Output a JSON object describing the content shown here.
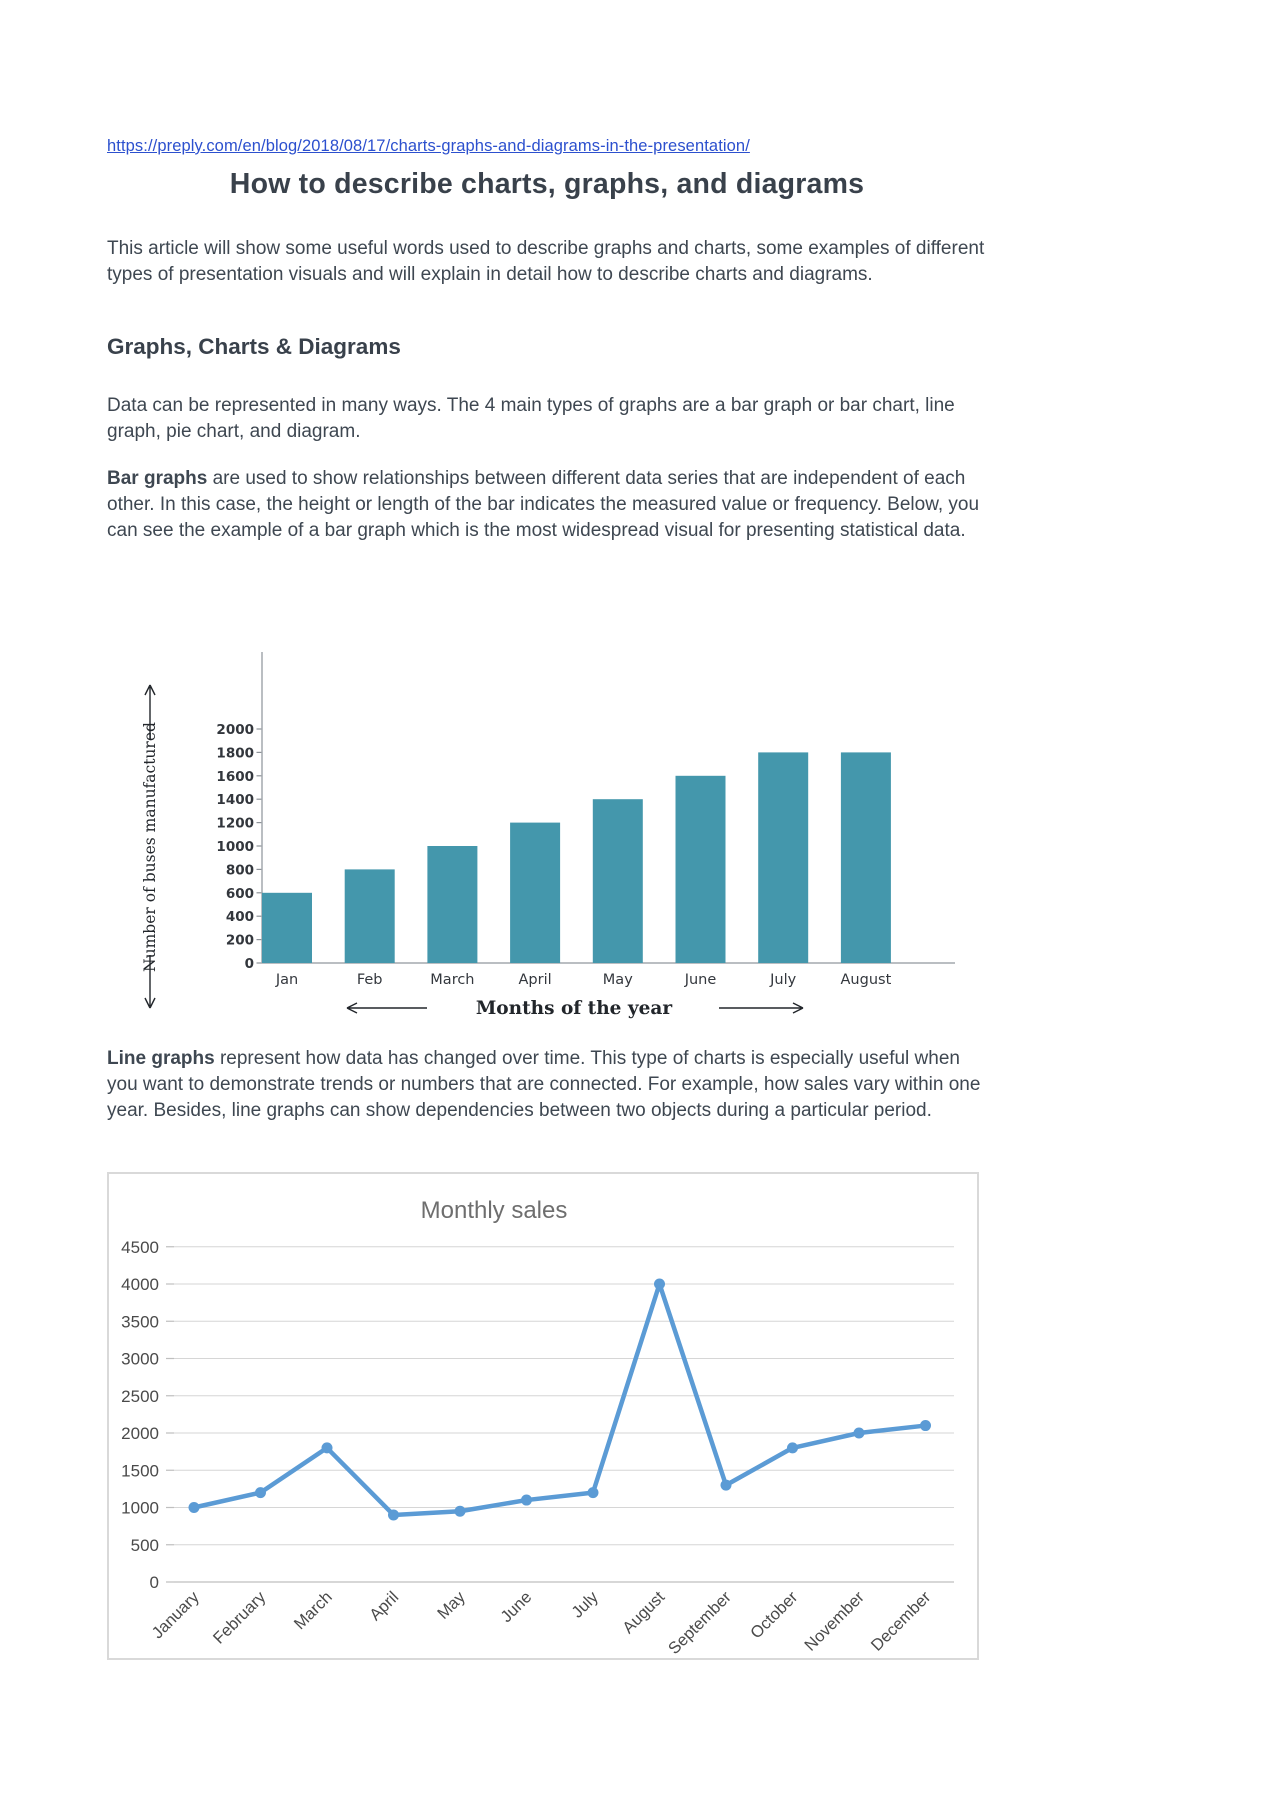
{
  "page": {
    "link": "https://preply.com/en/blog/2018/08/17/charts-graphs-and-diagrams-in-the-presentation/",
    "title": "How to describe charts, graphs, and diagrams",
    "intro": "This article will show some useful words used to describe graphs and charts, some examples of different types of presentation visuals and will explain in detail how to describe charts and diagrams.",
    "section_heading": "Graphs, Charts & Diagrams",
    "para_types": "Data can be represented in many ways. The 4 main types of graphs are a bar graph or bar chart, line graph, pie chart, and diagram.",
    "para_bar": {
      "lead": "Bar graphs",
      "rest": " are used to show relationships between different data series that are independent of each other. In this case, the height or length of the bar indicates the measured value or frequency. Below, you can see the example of a bar graph which is the most widespread visual for presenting statistical data."
    },
    "para_line": {
      "lead": "Line graphs",
      "rest": " represent how data has changed over time. This type of charts is especially useful when you want to demonstrate trends or numbers that are connected. For example, how sales vary within one year. Besides, line graphs can show dependencies between two objects during a particular period."
    }
  },
  "chart_data": [
    {
      "type": "bar",
      "title": "",
      "categories": [
        "Jan",
        "Feb",
        "March",
        "April",
        "May",
        "June",
        "July",
        "August"
      ],
      "values": [
        600,
        800,
        1000,
        1200,
        1400,
        1600,
        1800,
        1800
      ],
      "xlabel": "Months of the year",
      "ylabel": "Number of buses manufactured",
      "ylim": [
        0,
        2000
      ],
      "ytick_step": 200,
      "bar_color": "#4497ac",
      "grid": false,
      "legend": "none"
    },
    {
      "type": "line",
      "title": "Monthly sales",
      "categories": [
        "January",
        "February",
        "March",
        "April",
        "May",
        "June",
        "July",
        "August",
        "September",
        "October",
        "November",
        "December"
      ],
      "values": [
        1000,
        1200,
        1800,
        900,
        950,
        1100,
        1200,
        4000,
        1300,
        1800,
        2000,
        2100
      ],
      "xlabel": "",
      "ylabel": "",
      "ylim": [
        0,
        4500
      ],
      "ytick_step": 500,
      "line_color": "#5b9bd5",
      "marker": "circle",
      "grid": true,
      "legend": "none"
    }
  ]
}
